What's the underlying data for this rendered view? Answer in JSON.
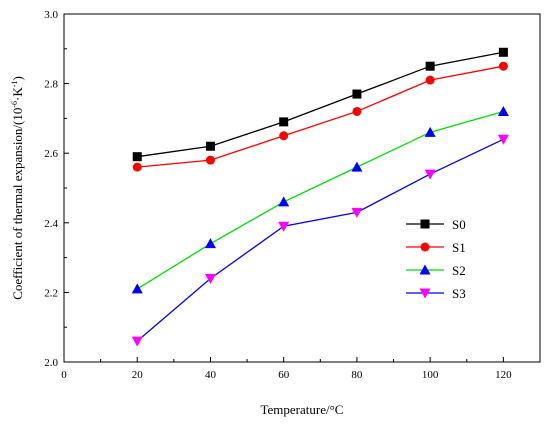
{
  "chart_data": {
    "type": "line",
    "x": [
      20,
      40,
      60,
      80,
      100,
      120
    ],
    "xlim": [
      0,
      130
    ],
    "ylim": [
      2.0,
      3.0
    ],
    "xticks": [
      "0",
      "20",
      "40",
      "60",
      "80",
      "100",
      "120"
    ],
    "yticks": [
      "2.0",
      "2.2",
      "2.4",
      "2.6",
      "2.8",
      "3.0"
    ],
    "xlabel": "Temperature/°C",
    "ylabel": "Coefficient of thermal expansion/(10^-6·K^-1)",
    "ylabel_parts": {
      "base": "Coefficient of thermal expansion/(10",
      "exp1": "-6",
      "mid": "·K",
      "exp2": "-1",
      "end": ")"
    },
    "grid": false,
    "legend": "right",
    "series": [
      {
        "name": "S0",
        "color": "#000000",
        "marker": "square",
        "values": [
          2.59,
          2.62,
          2.69,
          2.77,
          2.85,
          2.89
        ]
      },
      {
        "name": "S1",
        "color": "#ff0000",
        "marker": "circle",
        "values": [
          2.56,
          2.58,
          2.65,
          2.72,
          2.81,
          2.85
        ]
      },
      {
        "name": "S2",
        "color": "#00dd00",
        "marker": "triangle-up",
        "marker_color": "#0000ff",
        "values": [
          2.21,
          2.34,
          2.46,
          2.56,
          2.66,
          2.72
        ]
      },
      {
        "name": "S3",
        "color": "#0000ff",
        "marker": "triangle-down",
        "marker_color": "#ff00ff",
        "values": [
          2.06,
          2.24,
          2.39,
          2.43,
          2.54,
          2.64
        ]
      }
    ]
  }
}
